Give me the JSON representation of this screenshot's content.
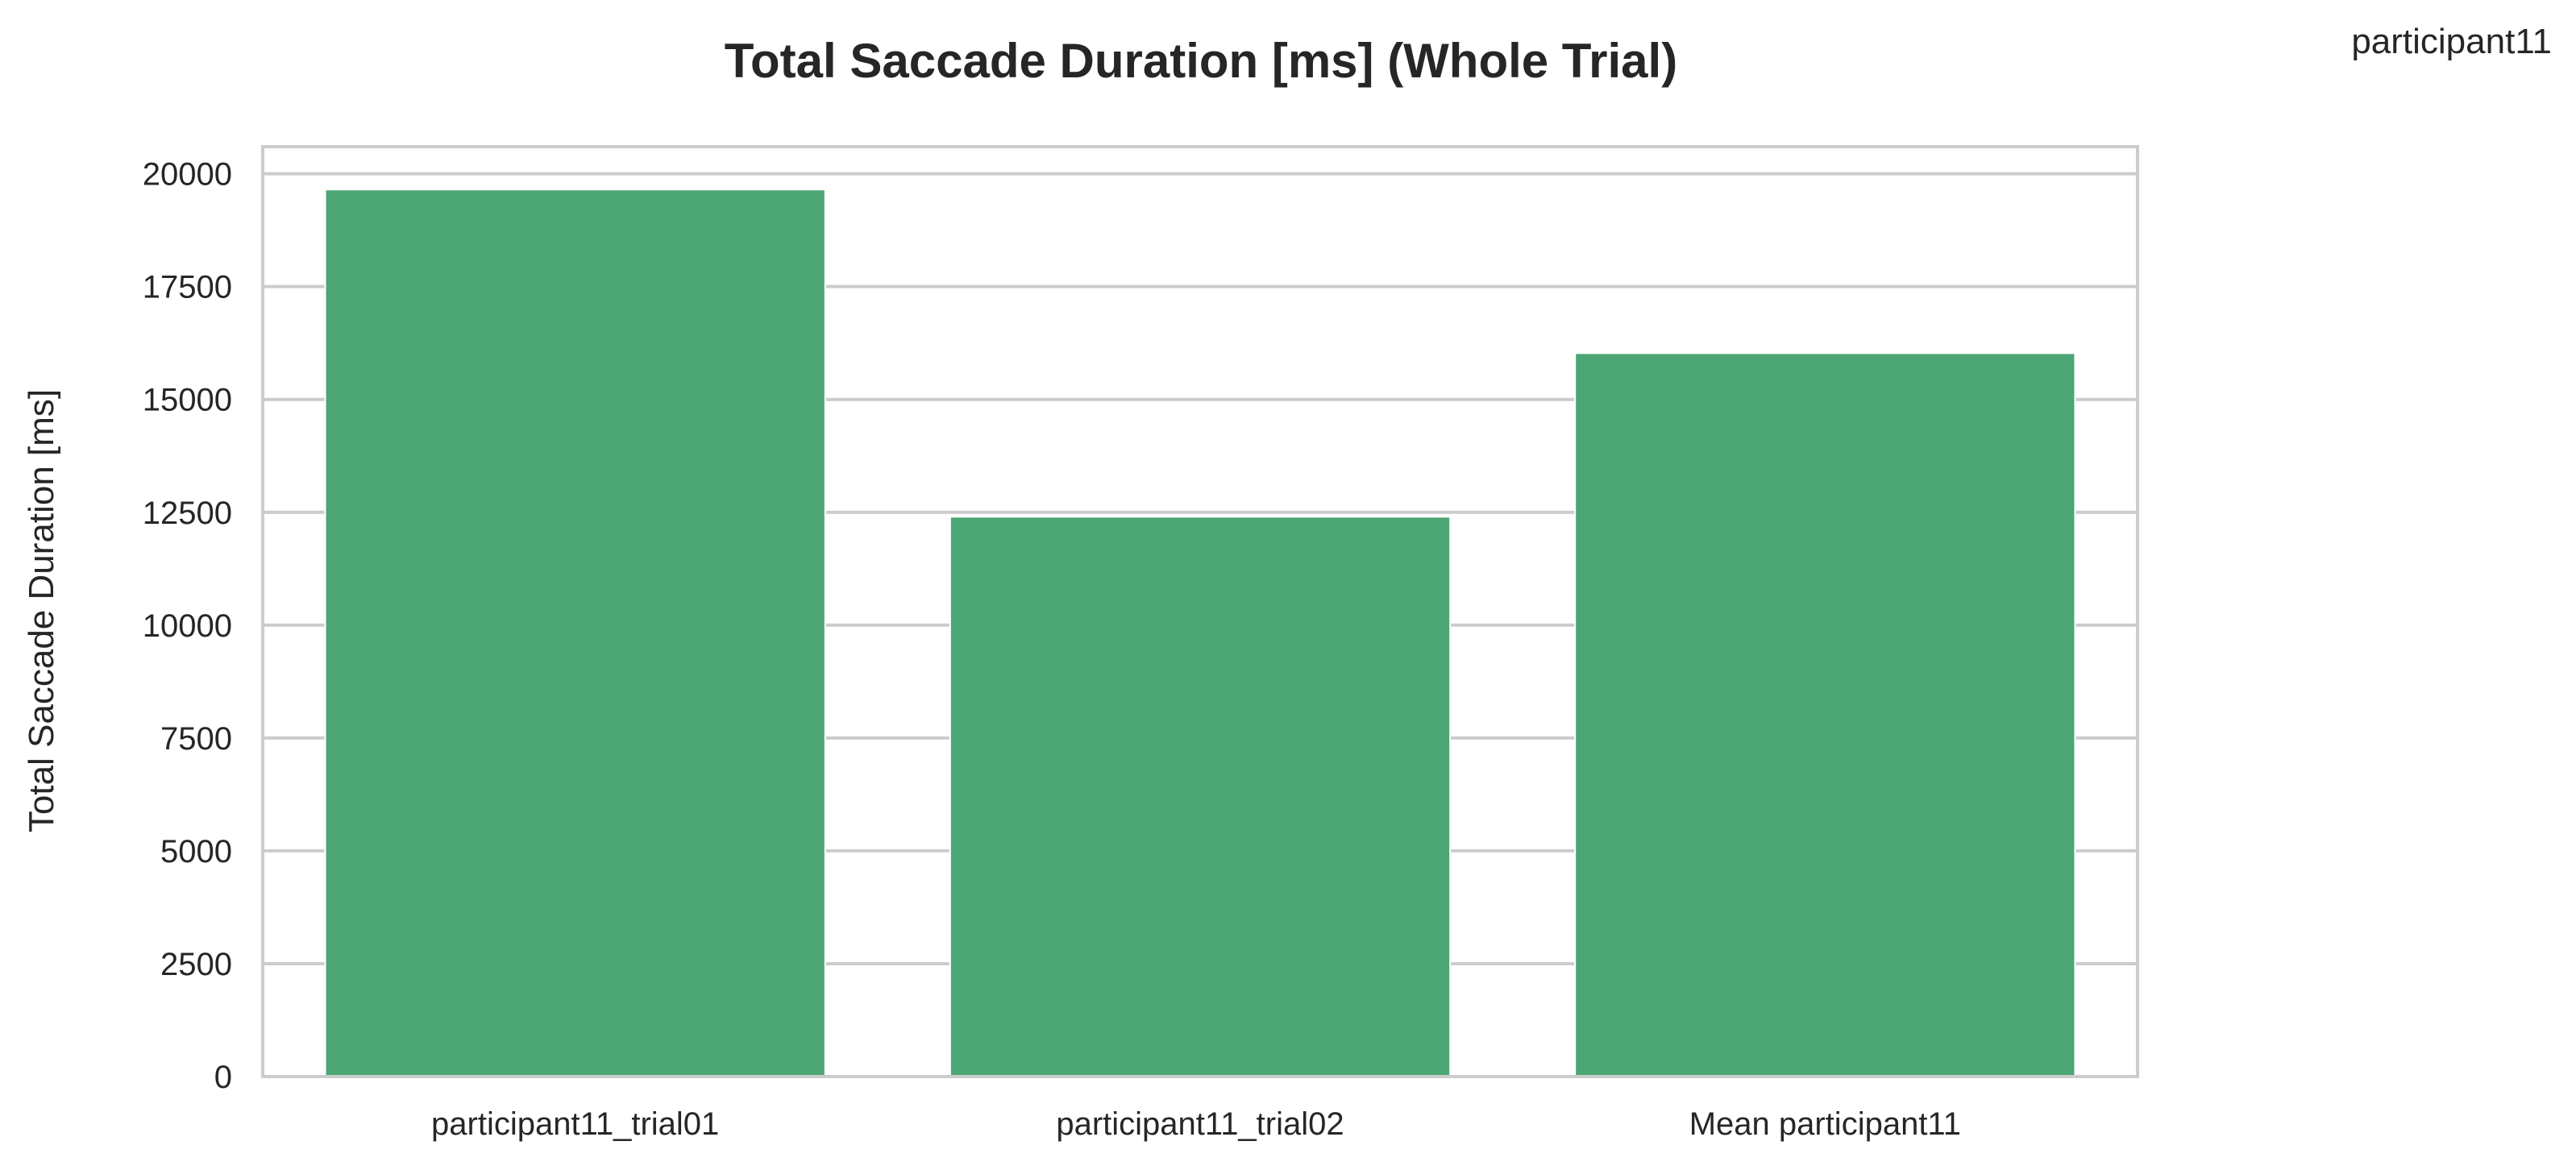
{
  "corner_label": "participant11",
  "colors": {
    "bar": "#4ca574",
    "grid": "#cccccc",
    "frame": "#cccccc",
    "background": "#ffffff",
    "text": "#262626"
  },
  "chart_data": {
    "type": "bar",
    "title": "Total Saccade Duration [ms] (Whole Trial)",
    "xlabel": "",
    "ylabel": "Total Saccade Duration [ms]",
    "categories": [
      "participant11_trial01",
      "participant11_trial02",
      "Mean participant11"
    ],
    "values": [
      19650,
      12400,
      16025
    ],
    "ylim": [
      0,
      20600
    ],
    "yticks": [
      0,
      2500,
      5000,
      7500,
      10000,
      12500,
      15000,
      17500,
      20000
    ],
    "ytick_labels": [
      "0",
      "2500",
      "5000",
      "7500",
      "10000",
      "12500",
      "15000",
      "17500",
      "20000"
    ],
    "grid": true,
    "legend": "none"
  }
}
